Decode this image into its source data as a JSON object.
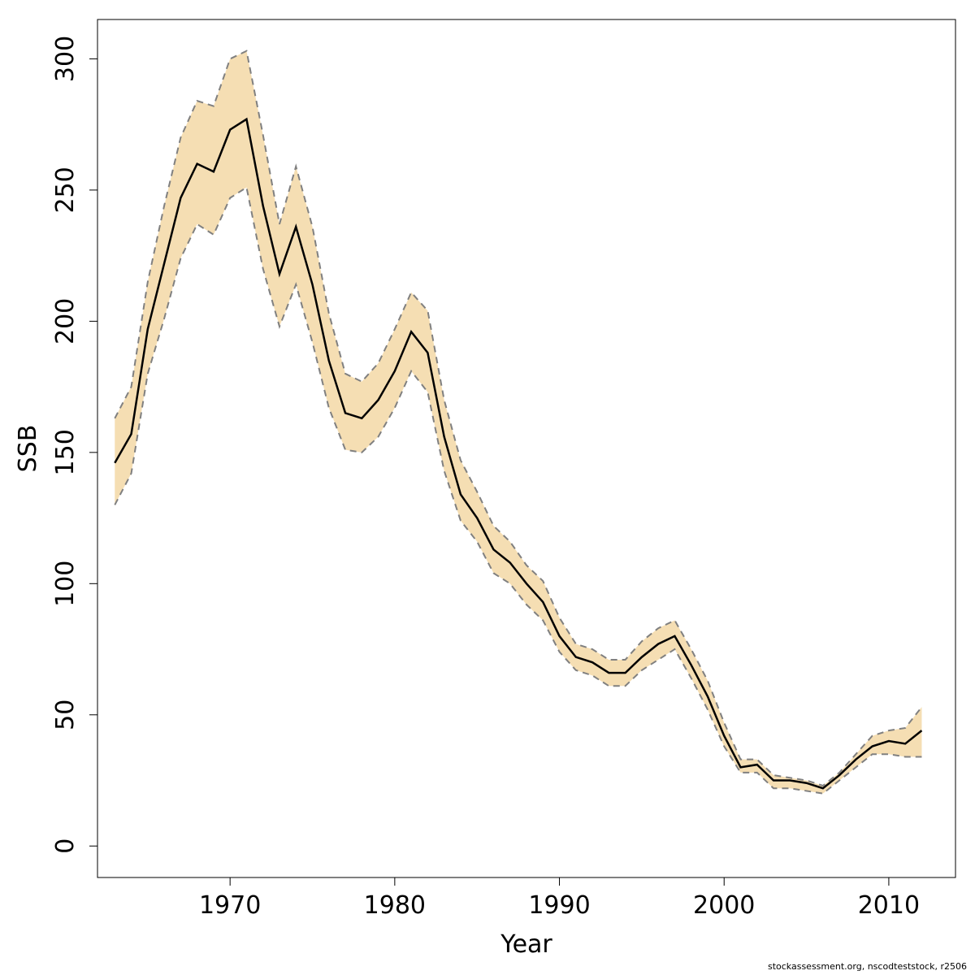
{
  "chart_data": {
    "type": "area",
    "xlabel": "Year",
    "ylabel": "SSB",
    "xlim": [
      1961.95,
      2014.05
    ],
    "ylim": [
      -12,
      315
    ],
    "xticks": [
      1970,
      1980,
      1990,
      2000,
      2010
    ],
    "yticks": [
      0,
      50,
      100,
      150,
      200,
      250,
      300
    ],
    "x": [
      1963,
      1964,
      1965,
      1966,
      1967,
      1968,
      1969,
      1970,
      1971,
      1972,
      1973,
      1974,
      1975,
      1976,
      1977,
      1978,
      1979,
      1980,
      1981,
      1982,
      1983,
      1984,
      1985,
      1986,
      1987,
      1988,
      1989,
      1990,
      1991,
      1992,
      1993,
      1994,
      1995,
      1996,
      1997,
      1998,
      1999,
      2000,
      2001,
      2002,
      2003,
      2004,
      2005,
      2006,
      2007,
      2008,
      2009,
      2010,
      2011,
      2012
    ],
    "series": [
      {
        "role": "estimate",
        "values": [
          146,
          157,
          197,
          222,
          247,
          260,
          257,
          273,
          277,
          244,
          218,
          236,
          214,
          185,
          165,
          163,
          170,
          181,
          196,
          188,
          156,
          134,
          125,
          113,
          108,
          100,
          93,
          80,
          72,
          70,
          66,
          66,
          72,
          77,
          80,
          69,
          57,
          42,
          30,
          31,
          25,
          25,
          24,
          22,
          27,
          33,
          38,
          40,
          39,
          44
        ]
      },
      {
        "role": "upper",
        "values": [
          163,
          175,
          215,
          244,
          270,
          284,
          282,
          300,
          303,
          271,
          237,
          259,
          236,
          203,
          180,
          177,
          184,
          197,
          211,
          204,
          170,
          147,
          135,
          122,
          116,
          107,
          101,
          87,
          77,
          75,
          71,
          71,
          78,
          83,
          86,
          75,
          63,
          47,
          33,
          33,
          27,
          26,
          25,
          23,
          28,
          35,
          42,
          44,
          45,
          53
        ]
      },
      {
        "role": "lower",
        "values": [
          130,
          142,
          180,
          201,
          224,
          237,
          233,
          247,
          251,
          220,
          198,
          214,
          192,
          167,
          151,
          150,
          156,
          167,
          181,
          173,
          143,
          124,
          116,
          104,
          100,
          92,
          86,
          74,
          67,
          65,
          61,
          61,
          67,
          71,
          75,
          64,
          52,
          38,
          28,
          28,
          22,
          22,
          21,
          20,
          25,
          30,
          35,
          35,
          34,
          34
        ]
      }
    ],
    "band_color": "#f5deb3",
    "line_color": "#000000",
    "bound_color": "#808080",
    "grid": false
  },
  "footer_text": "stockassessment.org, nscodteststock, r2506"
}
